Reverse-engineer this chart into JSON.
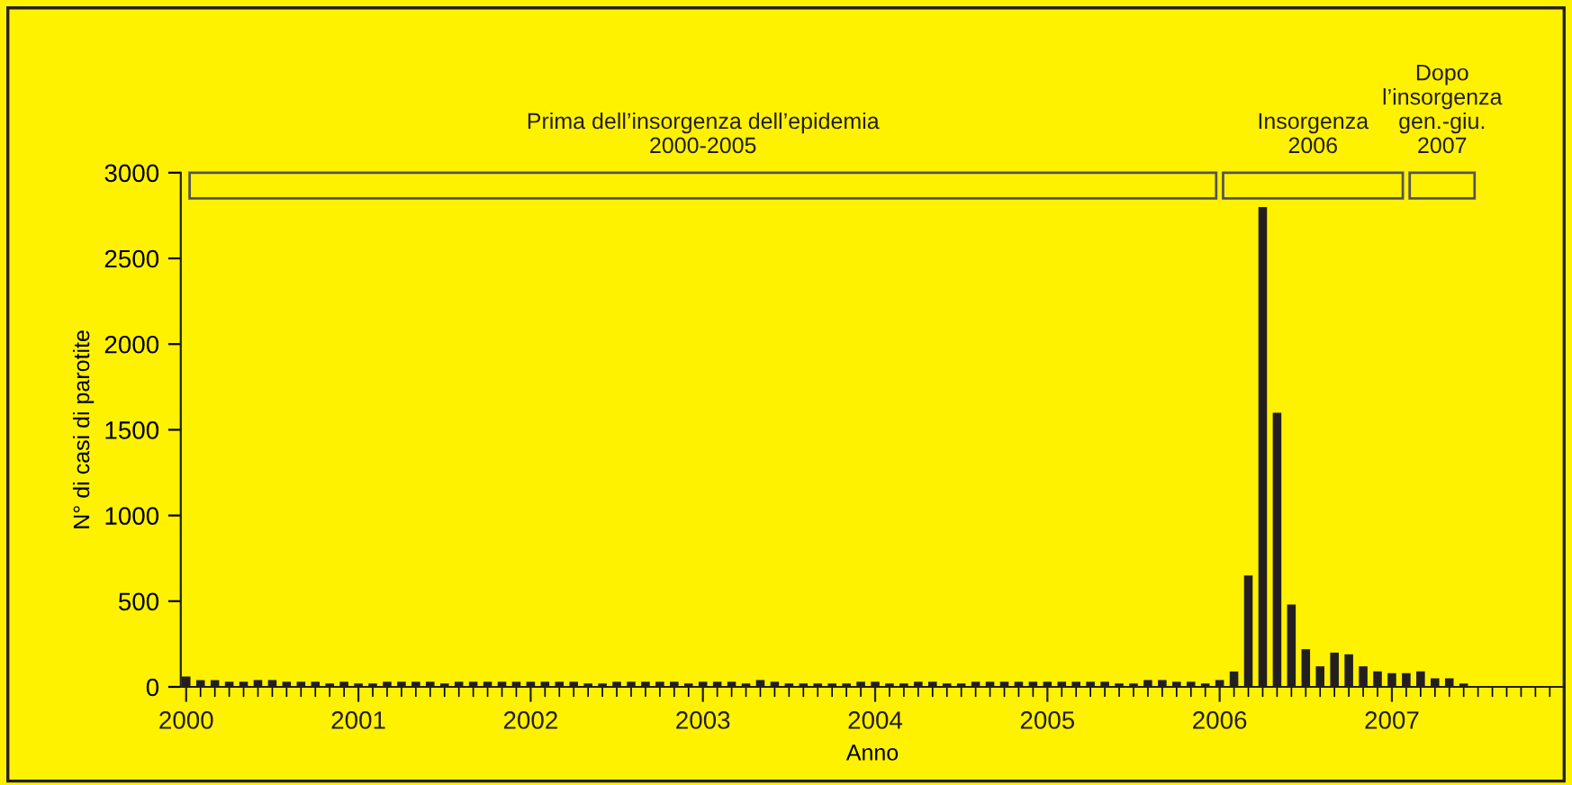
{
  "chart_data": {
    "type": "bar",
    "xlabel": "Anno",
    "ylabel": "N° di casi di parotite",
    "x": [
      "2000-01",
      "2000-02",
      "2000-03",
      "2000-04",
      "2000-05",
      "2000-06",
      "2000-07",
      "2000-08",
      "2000-09",
      "2000-10",
      "2000-11",
      "2000-12",
      "2001-01",
      "2001-02",
      "2001-03",
      "2001-04",
      "2001-05",
      "2001-06",
      "2001-07",
      "2001-08",
      "2001-09",
      "2001-10",
      "2001-11",
      "2001-12",
      "2002-01",
      "2002-02",
      "2002-03",
      "2002-04",
      "2002-05",
      "2002-06",
      "2002-07",
      "2002-08",
      "2002-09",
      "2002-10",
      "2002-11",
      "2002-12",
      "2003-01",
      "2003-02",
      "2003-03",
      "2003-04",
      "2003-05",
      "2003-06",
      "2003-07",
      "2003-08",
      "2003-09",
      "2003-10",
      "2003-11",
      "2003-12",
      "2004-01",
      "2004-02",
      "2004-03",
      "2004-04",
      "2004-05",
      "2004-06",
      "2004-07",
      "2004-08",
      "2004-09",
      "2004-10",
      "2004-11",
      "2004-12",
      "2005-01",
      "2005-02",
      "2005-03",
      "2005-04",
      "2005-05",
      "2005-06",
      "2005-07",
      "2005-08",
      "2005-09",
      "2005-10",
      "2005-11",
      "2005-12",
      "2006-01",
      "2006-02",
      "2006-03",
      "2006-04",
      "2006-05",
      "2006-06",
      "2006-07",
      "2006-08",
      "2006-09",
      "2006-10",
      "2006-11",
      "2006-12",
      "2007-01",
      "2007-02",
      "2007-03",
      "2007-04",
      "2007-05",
      "2007-06",
      "2007-07",
      "2007-08",
      "2007-09",
      "2007-10",
      "2007-11",
      "2007-12"
    ],
    "values": [
      60,
      40,
      40,
      30,
      30,
      40,
      40,
      30,
      30,
      30,
      20,
      30,
      20,
      20,
      30,
      30,
      30,
      30,
      20,
      30,
      30,
      30,
      30,
      30,
      30,
      30,
      30,
      30,
      20,
      20,
      30,
      30,
      30,
      30,
      30,
      20,
      30,
      30,
      30,
      20,
      40,
      30,
      20,
      20,
      20,
      20,
      20,
      30,
      30,
      20,
      20,
      30,
      30,
      20,
      20,
      30,
      30,
      30,
      30,
      30,
      30,
      30,
      30,
      30,
      30,
      20,
      20,
      40,
      40,
      30,
      30,
      20,
      40,
      90,
      650,
      2800,
      1600,
      480,
      220,
      120,
      200,
      190,
      120,
      90,
      80,
      80,
      90,
      50,
      50,
      20,
      0,
      0,
      0,
      0,
      0,
      0
    ],
    "color": "#231f20",
    "xlim": [
      "1999-12-20",
      "2008-01"
    ],
    "xticks": [
      {
        "value": "2000-01",
        "label": "2000"
      },
      {
        "value": "2001-01",
        "label": "2001"
      },
      {
        "value": "2002-01",
        "label": "2002"
      },
      {
        "value": "2003-01",
        "label": "2003"
      },
      {
        "value": "2004-01",
        "label": "2004"
      },
      {
        "value": "2005-01",
        "label": "2005"
      },
      {
        "value": "2006-01",
        "label": "2006"
      },
      {
        "value": "2007-01",
        "label": "2007"
      }
    ],
    "ylim": [
      0,
      3000
    ],
    "yticks": [
      0,
      500,
      1000,
      1500,
      2000,
      2500,
      3000
    ],
    "grid": false,
    "legend": false,
    "bands": [
      {
        "axis": "x",
        "from": "2000-01",
        "to": "2006-01",
        "label": "Prima dell’insorgenza dell’epidemia\n2000-2005"
      },
      {
        "axis": "x",
        "from": "2006-01",
        "to": "2007-02",
        "label": "Insorgenza\n2006"
      },
      {
        "axis": "x",
        "from": "2007-02",
        "to": "2007-07",
        "label": "Dopo\nl’insorgenza\ngen.-giu.\n2007"
      }
    ]
  }
}
